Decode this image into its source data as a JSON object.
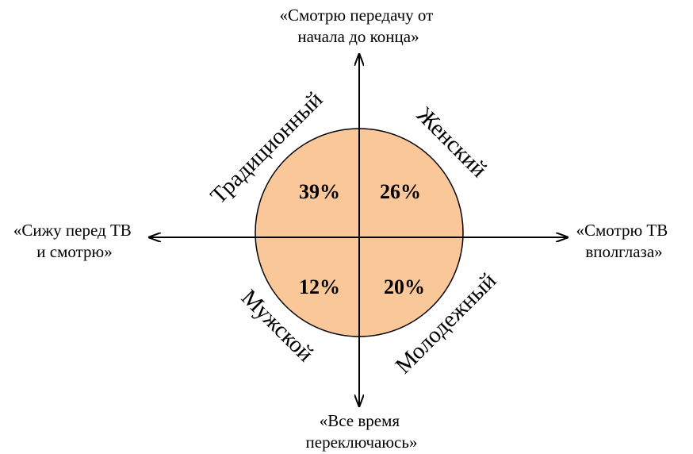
{
  "axes": {
    "top": {
      "lines": [
        "«Смотрю передачу от",
        "начала до конца»"
      ]
    },
    "bottom": {
      "lines": [
        "«Все время",
        "переключаюсь»"
      ]
    },
    "left": {
      "lines": [
        "«Сижу перед ТВ",
        "и смотрю»"
      ]
    },
    "right": {
      "lines": [
        "«Смотрю ТВ",
        "вполглаза»"
      ]
    }
  },
  "quadrants": {
    "top_left": {
      "label": "Традиционный",
      "percent": "39%"
    },
    "top_right": {
      "label": "Женский",
      "percent": "26%"
    },
    "bottom_left": {
      "label": "Мужской",
      "percent": "12%"
    },
    "bottom_right": {
      "label": "Молодежный",
      "percent": "20%"
    }
  },
  "colors": {
    "circle_fill": "#FAC898",
    "stroke": "#000000"
  }
}
